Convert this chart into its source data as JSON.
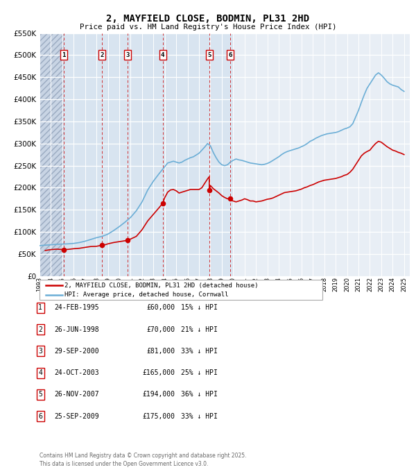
{
  "title": "2, MAYFIELD CLOSE, BODMIN, PL31 2HD",
  "subtitle": "Price paid vs. HM Land Registry's House Price Index (HPI)",
  "transactions": [
    {
      "num": 1,
      "date": "24-FEB-1995",
      "date_x": 1995.12,
      "price": 60000,
      "pct": "15%"
    },
    {
      "num": 2,
      "date": "26-JUN-1998",
      "date_x": 1998.49,
      "price": 70000,
      "pct": "21%"
    },
    {
      "num": 3,
      "date": "29-SEP-2000",
      "date_x": 2000.75,
      "price": 81000,
      "pct": "33%"
    },
    {
      "num": 4,
      "date": "24-OCT-2003",
      "date_x": 2003.81,
      "price": 165000,
      "pct": "25%"
    },
    {
      "num": 5,
      "date": "26-NOV-2007",
      "date_x": 2007.9,
      "price": 194000,
      "pct": "36%"
    },
    {
      "num": 6,
      "date": "25-SEP-2009",
      "date_x": 2009.73,
      "price": 175000,
      "pct": "33%"
    }
  ],
  "hpi_anchors": [
    [
      1993.0,
      69000
    ],
    [
      1993.5,
      70000
    ],
    [
      1994.0,
      71000
    ],
    [
      1994.5,
      72000
    ],
    [
      1995.0,
      72500
    ],
    [
      1995.5,
      73000
    ],
    [
      1996.0,
      74000
    ],
    [
      1996.5,
      76000
    ],
    [
      1997.0,
      79000
    ],
    [
      1997.5,
      83000
    ],
    [
      1998.0,
      87000
    ],
    [
      1998.5,
      90000
    ],
    [
      1999.0,
      95000
    ],
    [
      1999.5,
      103000
    ],
    [
      2000.0,
      112000
    ],
    [
      2000.5,
      122000
    ],
    [
      2001.0,
      133000
    ],
    [
      2001.5,
      148000
    ],
    [
      2002.0,
      168000
    ],
    [
      2002.5,
      195000
    ],
    [
      2003.0,
      215000
    ],
    [
      2003.5,
      232000
    ],
    [
      2004.0,
      248000
    ],
    [
      2004.25,
      256000
    ],
    [
      2004.5,
      258000
    ],
    [
      2004.75,
      260000
    ],
    [
      2005.0,
      258000
    ],
    [
      2005.25,
      256000
    ],
    [
      2005.5,
      258000
    ],
    [
      2005.75,
      262000
    ],
    [
      2006.0,
      265000
    ],
    [
      2006.25,
      268000
    ],
    [
      2006.5,
      270000
    ],
    [
      2006.75,
      274000
    ],
    [
      2007.0,
      278000
    ],
    [
      2007.25,
      285000
    ],
    [
      2007.5,
      292000
    ],
    [
      2007.75,
      300000
    ],
    [
      2008.0,
      295000
    ],
    [
      2008.25,
      280000
    ],
    [
      2008.5,
      268000
    ],
    [
      2008.75,
      258000
    ],
    [
      2009.0,
      252000
    ],
    [
      2009.25,
      250000
    ],
    [
      2009.5,
      252000
    ],
    [
      2009.75,
      258000
    ],
    [
      2010.0,
      262000
    ],
    [
      2010.25,
      265000
    ],
    [
      2010.5,
      263000
    ],
    [
      2010.75,
      262000
    ],
    [
      2011.0,
      260000
    ],
    [
      2011.25,
      258000
    ],
    [
      2011.5,
      256000
    ],
    [
      2011.75,
      255000
    ],
    [
      2012.0,
      254000
    ],
    [
      2012.25,
      253000
    ],
    [
      2012.5,
      252000
    ],
    [
      2012.75,
      253000
    ],
    [
      2013.0,
      255000
    ],
    [
      2013.25,
      258000
    ],
    [
      2013.5,
      262000
    ],
    [
      2013.75,
      266000
    ],
    [
      2014.0,
      270000
    ],
    [
      2014.25,
      275000
    ],
    [
      2014.5,
      279000
    ],
    [
      2014.75,
      282000
    ],
    [
      2015.0,
      284000
    ],
    [
      2015.25,
      286000
    ],
    [
      2015.5,
      288000
    ],
    [
      2015.75,
      290000
    ],
    [
      2016.0,
      293000
    ],
    [
      2016.25,
      296000
    ],
    [
      2016.5,
      300000
    ],
    [
      2016.75,
      305000
    ],
    [
      2017.0,
      308000
    ],
    [
      2017.25,
      312000
    ],
    [
      2017.5,
      315000
    ],
    [
      2017.75,
      318000
    ],
    [
      2018.0,
      320000
    ],
    [
      2018.25,
      322000
    ],
    [
      2018.5,
      323000
    ],
    [
      2018.75,
      324000
    ],
    [
      2019.0,
      325000
    ],
    [
      2019.25,
      327000
    ],
    [
      2019.5,
      330000
    ],
    [
      2019.75,
      333000
    ],
    [
      2020.0,
      335000
    ],
    [
      2020.25,
      338000
    ],
    [
      2020.5,
      345000
    ],
    [
      2020.75,
      360000
    ],
    [
      2021.0,
      375000
    ],
    [
      2021.25,
      393000
    ],
    [
      2021.5,
      410000
    ],
    [
      2021.75,
      425000
    ],
    [
      2022.0,
      435000
    ],
    [
      2022.25,
      445000
    ],
    [
      2022.5,
      455000
    ],
    [
      2022.75,
      460000
    ],
    [
      2023.0,
      455000
    ],
    [
      2023.25,
      448000
    ],
    [
      2023.5,
      440000
    ],
    [
      2023.75,
      435000
    ],
    [
      2024.0,
      432000
    ],
    [
      2024.25,
      430000
    ],
    [
      2024.5,
      428000
    ],
    [
      2024.75,
      422000
    ],
    [
      2025.0,
      418000
    ]
  ],
  "price_line_anchors": [
    [
      1993.5,
      58000
    ],
    [
      1994.0,
      60000
    ],
    [
      1994.5,
      61000
    ],
    [
      1995.12,
      60000
    ],
    [
      1995.5,
      60500
    ],
    [
      1996.0,
      62000
    ],
    [
      1996.5,
      63000
    ],
    [
      1997.0,
      65000
    ],
    [
      1997.5,
      67000
    ],
    [
      1998.0,
      67500
    ],
    [
      1998.49,
      70000
    ],
    [
      1998.75,
      71000
    ],
    [
      1999.0,
      73000
    ],
    [
      1999.5,
      76000
    ],
    [
      2000.0,
      78000
    ],
    [
      2000.5,
      80000
    ],
    [
      2000.75,
      81000
    ],
    [
      2001.0,
      84000
    ],
    [
      2001.5,
      90000
    ],
    [
      2002.0,
      105000
    ],
    [
      2002.5,
      125000
    ],
    [
      2003.0,
      140000
    ],
    [
      2003.5,
      155000
    ],
    [
      2003.81,
      165000
    ],
    [
      2004.0,
      178000
    ],
    [
      2004.25,
      190000
    ],
    [
      2004.5,
      195000
    ],
    [
      2004.75,
      196000
    ],
    [
      2005.0,
      193000
    ],
    [
      2005.25,
      188000
    ],
    [
      2005.5,
      190000
    ],
    [
      2005.75,
      192000
    ],
    [
      2006.0,
      194000
    ],
    [
      2006.25,
      196000
    ],
    [
      2006.5,
      196000
    ],
    [
      2006.75,
      196000
    ],
    [
      2007.0,
      196000
    ],
    [
      2007.25,
      200000
    ],
    [
      2007.5,
      210000
    ],
    [
      2007.75,
      220000
    ],
    [
      2007.9,
      225000
    ],
    [
      2007.9,
      194000
    ],
    [
      2008.0,
      205000
    ],
    [
      2008.25,
      198000
    ],
    [
      2008.5,
      193000
    ],
    [
      2008.75,
      188000
    ],
    [
      2009.0,
      182000
    ],
    [
      2009.25,
      178000
    ],
    [
      2009.5,
      175000
    ],
    [
      2009.73,
      175000
    ],
    [
      2009.75,
      172000
    ],
    [
      2010.0,
      170000
    ],
    [
      2010.25,
      168000
    ],
    [
      2010.5,
      170000
    ],
    [
      2010.75,
      172000
    ],
    [
      2011.0,
      175000
    ],
    [
      2011.25,
      173000
    ],
    [
      2011.5,
      170000
    ],
    [
      2011.75,
      170000
    ],
    [
      2012.0,
      168000
    ],
    [
      2012.25,
      169000
    ],
    [
      2012.5,
      170000
    ],
    [
      2012.75,
      172000
    ],
    [
      2013.0,
      174000
    ],
    [
      2013.25,
      175000
    ],
    [
      2013.5,
      177000
    ],
    [
      2013.75,
      180000
    ],
    [
      2014.0,
      183000
    ],
    [
      2014.25,
      186000
    ],
    [
      2014.5,
      189000
    ],
    [
      2014.75,
      190000
    ],
    [
      2015.0,
      191000
    ],
    [
      2015.25,
      192000
    ],
    [
      2015.5,
      193000
    ],
    [
      2015.75,
      195000
    ],
    [
      2016.0,
      197000
    ],
    [
      2016.25,
      200000
    ],
    [
      2016.5,
      202000
    ],
    [
      2016.75,
      205000
    ],
    [
      2017.0,
      207000
    ],
    [
      2017.25,
      210000
    ],
    [
      2017.5,
      213000
    ],
    [
      2017.75,
      215000
    ],
    [
      2018.0,
      217000
    ],
    [
      2018.25,
      218000
    ],
    [
      2018.5,
      219000
    ],
    [
      2018.75,
      220000
    ],
    [
      2019.0,
      221000
    ],
    [
      2019.25,
      223000
    ],
    [
      2019.5,
      225000
    ],
    [
      2019.75,
      228000
    ],
    [
      2020.0,
      230000
    ],
    [
      2020.25,
      235000
    ],
    [
      2020.5,
      242000
    ],
    [
      2020.75,
      252000
    ],
    [
      2021.0,
      262000
    ],
    [
      2021.25,
      272000
    ],
    [
      2021.5,
      278000
    ],
    [
      2021.75,
      282000
    ],
    [
      2022.0,
      285000
    ],
    [
      2022.25,
      293000
    ],
    [
      2022.5,
      300000
    ],
    [
      2022.75,
      305000
    ],
    [
      2023.0,
      303000
    ],
    [
      2023.25,
      298000
    ],
    [
      2023.5,
      293000
    ],
    [
      2023.75,
      289000
    ],
    [
      2024.0,
      285000
    ],
    [
      2024.25,
      283000
    ],
    [
      2024.5,
      280000
    ],
    [
      2024.75,
      278000
    ],
    [
      2025.0,
      275000
    ]
  ],
  "hpi_line_color": "#6baed6",
  "price_line_color": "#cc0000",
  "ylim": [
    0,
    550000
  ],
  "yticks": [
    0,
    50000,
    100000,
    150000,
    200000,
    250000,
    300000,
    350000,
    400000,
    450000,
    500000,
    550000
  ],
  "xlim_start": 1993.0,
  "xlim_end": 2025.5,
  "hatch_end": 1995.12,
  "legend_label_price": "2, MAYFIELD CLOSE, BODMIN, PL31 2HD (detached house)",
  "legend_label_hpi": "HPI: Average price, detached house, Cornwall",
  "footer_line1": "Contains HM Land Registry data © Crown copyright and database right 2025.",
  "footer_line2": "This data is licensed under the Open Government Licence v3.0."
}
